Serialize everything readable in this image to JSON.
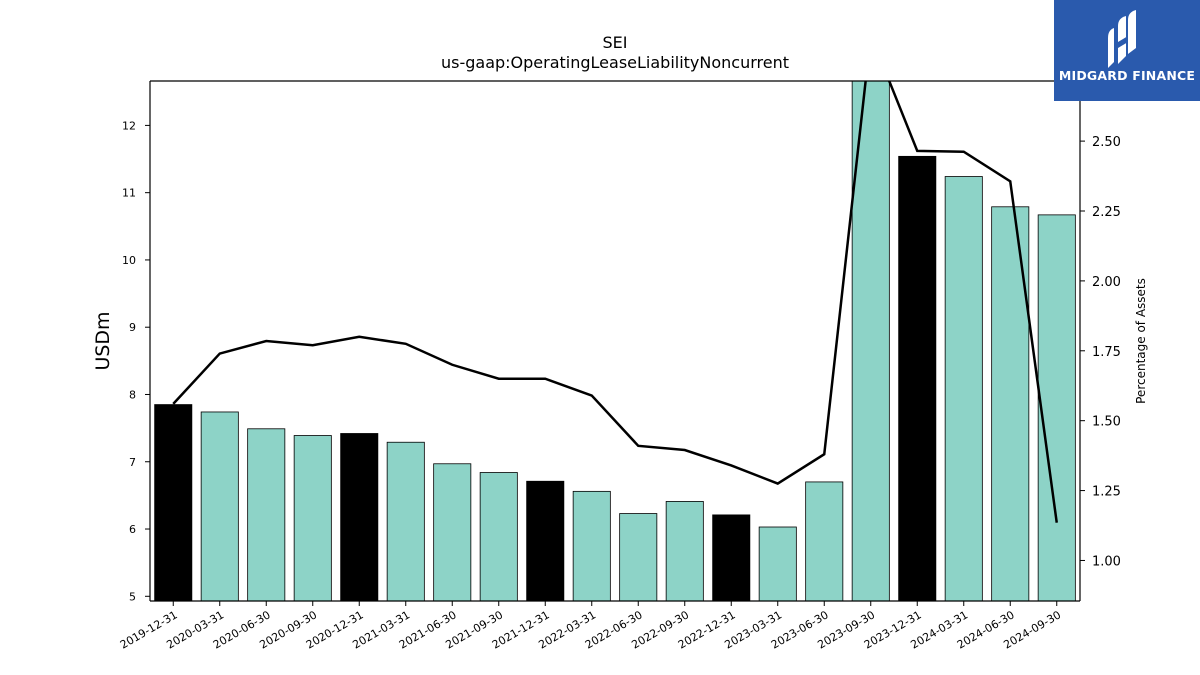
{
  "chart_data": {
    "type": "bar",
    "title": "SEI",
    "subtitle": "us-gaap:OperatingLeaseLiabilityNoncurrent",
    "ylabel": "USDm",
    "y2label": "Percentage of Assets",
    "categories": [
      "2019-12-31",
      "2020-03-31",
      "2020-06-30",
      "2020-09-30",
      "2020-12-31",
      "2021-03-31",
      "2021-06-30",
      "2021-09-30",
      "2021-12-31",
      "2022-03-31",
      "2022-06-30",
      "2022-09-30",
      "2022-12-31",
      "2023-03-31",
      "2023-06-30",
      "2023-09-30",
      "2023-12-31",
      "2024-03-31",
      "2024-06-30",
      "2024-09-30"
    ],
    "series": [
      {
        "kind": "bar",
        "axis": "left",
        "values": [
          7.85,
          7.74,
          7.49,
          7.39,
          7.42,
          7.29,
          6.97,
          6.84,
          6.71,
          6.56,
          6.23,
          6.41,
          6.21,
          6.03,
          6.7,
          12.66,
          11.54,
          11.24,
          10.79,
          10.67
        ],
        "fill": [
          "#000000",
          "#8dd3c7",
          "#8dd3c7",
          "#8dd3c7",
          "#000000",
          "#8dd3c7",
          "#8dd3c7",
          "#8dd3c7",
          "#000000",
          "#8dd3c7",
          "#8dd3c7",
          "#8dd3c7",
          "#000000",
          "#8dd3c7",
          "#8dd3c7",
          "#8dd3c7",
          "#000000",
          "#8dd3c7",
          "#8dd3c7",
          "#8dd3c7"
        ]
      },
      {
        "kind": "line",
        "axis": "right",
        "values": [
          1.56,
          1.74,
          1.785,
          1.77,
          1.8,
          1.775,
          1.7,
          1.65,
          1.65,
          1.59,
          1.41,
          1.395,
          1.34,
          1.275,
          1.38,
          2.88,
          2.465,
          2.462,
          2.356,
          1.135
        ]
      }
    ],
    "ylim": [
      4.93,
      12.66
    ],
    "y2lim": [
      0.855,
      2.715
    ],
    "yticks": [
      5,
      6,
      7,
      8,
      9,
      10,
      11,
      12
    ],
    "y2ticks": [
      "1.00",
      "1.25",
      "1.50",
      "1.75",
      "2.00",
      "2.25",
      "2.50"
    ],
    "colors": {
      "bar": "#8dd3c7",
      "bar_highlight": "#000000",
      "line": "#000000"
    },
    "grid": false,
    "legend": "none"
  },
  "logo": {
    "text": "MIDGARD FINANCE",
    "bg": "#2a5aad"
  }
}
